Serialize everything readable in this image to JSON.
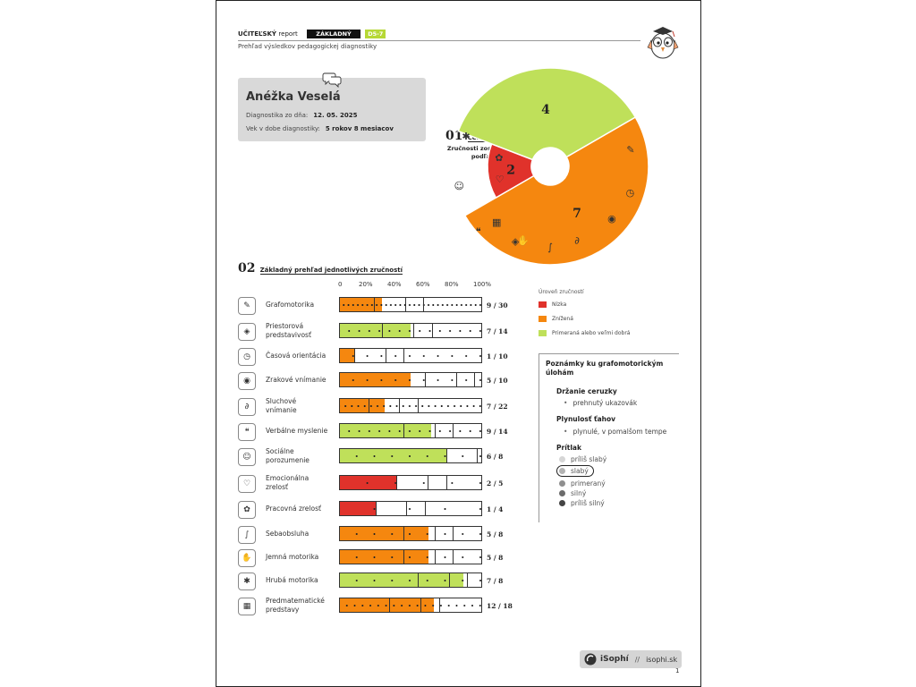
{
  "header": {
    "title_bold": "UČITEĽSKÝ",
    "title_rest": "report",
    "level": "ZÁKLADNÝ",
    "code": "D5-7",
    "subtitle": "Prehľad výsledkov pedagogickej diagnostiky"
  },
  "child": {
    "name": "Anéžka Veselá",
    "diag_label": "Diagnostika zo dňa:",
    "diag_date": "12. 05. 2025",
    "age_label": "Vek v dobe diagnostiky:",
    "age_value": "5 rokov 8 mesiacov"
  },
  "section1": {
    "number": "01",
    "title": "Celkový pohľad",
    "subtitle_line1": "Zručnosti zoskupené",
    "subtitle_line2": "podľa úrovne"
  },
  "chart_data": [
    {
      "type": "pie",
      "series": [
        {
          "name": "Nízka",
          "value": 2,
          "color": "#e0322b"
        },
        {
          "name": "Znížená",
          "value": 7,
          "color": "#f5870f"
        },
        {
          "name": "Primeraná alebo veľmi dobrá",
          "value": 4,
          "color": "#bfe05a"
        }
      ]
    },
    {
      "type": "bar",
      "xlim_percent": [
        0,
        100
      ],
      "tick_labels": [
        "0",
        "20%",
        "40%",
        "60%",
        "80%",
        "100%"
      ],
      "categories": [
        "Grafomotorika",
        "Priestorová predstavivosť",
        "Časová orientácia",
        "Zrakové vnímanie",
        "Sluchové vnímanie",
        "Verbálne myslenie",
        "Sociálne porozumenie",
        "Emocionálna zrelosť",
        "Pracovná zrelosť",
        "Sebaobsluha",
        "Jemná motorika",
        "Hrubá motorika",
        "Predmatematické predstavy"
      ],
      "values": [
        9,
        7,
        1,
        5,
        7,
        9,
        6,
        2,
        1,
        5,
        5,
        7,
        12
      ],
      "max": [
        30,
        14,
        10,
        10,
        22,
        14,
        8,
        5,
        4,
        8,
        8,
        8,
        18
      ]
    }
  ],
  "section2": {
    "number": "02",
    "title": "Základný prehľad jednotlivých zručností"
  },
  "skills": [
    {
      "l1": "Grafomotorika",
      "l2": "",
      "score": "9 / 30",
      "icon": "pencil-icon",
      "glyph": "✎"
    },
    {
      "l1": "Priestorová",
      "l2": "predstavivosť",
      "score": "7 / 14",
      "icon": "cube-icon",
      "glyph": "◈"
    },
    {
      "l1": "Časová orientácia",
      "l2": "",
      "score": "1 / 10",
      "icon": "clock-icon",
      "glyph": "◷"
    },
    {
      "l1": "Zrakové vnímanie",
      "l2": "",
      "score": "5 / 10",
      "icon": "eye-icon",
      "glyph": "◉"
    },
    {
      "l1": "Sluchové",
      "l2": "vnímanie",
      "score": "7 / 22",
      "icon": "ear-icon",
      "glyph": "∂"
    },
    {
      "l1": "Verbálne myslenie",
      "l2": "",
      "score": "9 / 14",
      "icon": "speech-bubbles-icon",
      "glyph": "❝"
    },
    {
      "l1": "Sociálne",
      "l2": "porozumenie",
      "score": "6 / 8",
      "icon": "faces-icon",
      "glyph": "☺"
    },
    {
      "l1": "Emocionálna",
      "l2": "zrelosť",
      "score": "2 / 5",
      "icon": "head-heart-icon",
      "glyph": "♡"
    },
    {
      "l1": "Pracovná zrelosť",
      "l2": "",
      "score": "1 / 4",
      "icon": "bee-icon",
      "glyph": "✿"
    },
    {
      "l1": "Sebaobsluha",
      "l2": "",
      "score": "5 / 8",
      "icon": "brush-icon",
      "glyph": "∫"
    },
    {
      "l1": "Jemná motorika",
      "l2": "",
      "score": "5 / 8",
      "icon": "hand-icon",
      "glyph": "✋"
    },
    {
      "l1": "Hrubá motorika",
      "l2": "",
      "score": "7 / 8",
      "icon": "running-icon",
      "glyph": "✱"
    },
    {
      "l1": "Predmatematické",
      "l2": "predstavy",
      "score": "12 / 18",
      "icon": "abacus-icon",
      "glyph": "▦"
    }
  ],
  "legend": {
    "title": "Úroveň zručností",
    "items": [
      "Nízka",
      "Znížená",
      "Primeraná alebo veľmi dobrá"
    ],
    "colors": [
      "#e0322b",
      "#f5870f",
      "#bfe05a"
    ]
  },
  "notes": {
    "title": "Poznámky ku grafomotorickým úlohám",
    "grip_h": "Držanie ceruzky",
    "grip_v": "prehnutý ukazovák",
    "flow_h": "Plynulosť ťahov",
    "flow_v": "plynulé, v pomalšom tempe",
    "press_h": "Prítlak",
    "press": [
      "príliš slabý",
      "slabý",
      "primeraný",
      "silný",
      "príliš silný"
    ],
    "press_selected": "slabý"
  },
  "footer": {
    "brand": "iSophí",
    "sep": "//",
    "url": "isophi.sk",
    "page": "1"
  }
}
